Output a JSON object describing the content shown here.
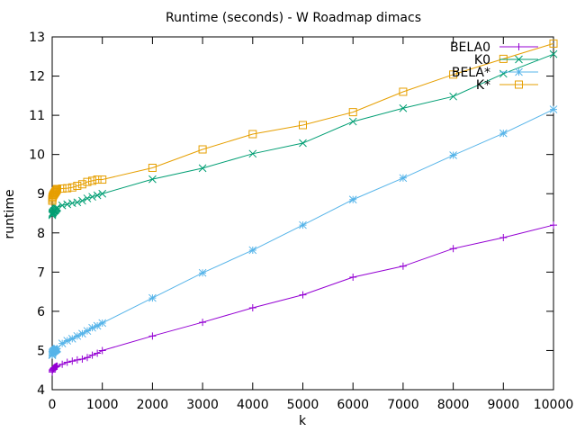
{
  "chart_data": {
    "type": "line",
    "title": "Runtime (seconds) - W Roadmap dimacs",
    "xlabel": "k",
    "ylabel": "runtime",
    "xlim": [
      0,
      10000
    ],
    "ylim": [
      4,
      13
    ],
    "xticks": [
      0,
      1000,
      2000,
      3000,
      4000,
      5000,
      6000,
      7000,
      8000,
      9000,
      10000
    ],
    "yticks": [
      4,
      5,
      6,
      7,
      8,
      9,
      10,
      11,
      12,
      13
    ],
    "grid": false,
    "legend_position": "top-right",
    "series": [
      {
        "name": "BELA0",
        "color": "#9400d3",
        "marker": "plus",
        "x": [
          1,
          2,
          5,
          10,
          20,
          30,
          40,
          50,
          60,
          70,
          80,
          90,
          100,
          200,
          300,
          400,
          500,
          600,
          700,
          800,
          900,
          1000,
          2000,
          3000,
          4000,
          5000,
          6000,
          7000,
          8000,
          9000,
          10000
        ],
        "y": [
          4.45,
          4.48,
          4.5,
          4.52,
          4.53,
          4.55,
          4.56,
          4.57,
          4.58,
          4.58,
          4.59,
          4.6,
          4.6,
          4.65,
          4.7,
          4.73,
          4.76,
          4.78,
          4.82,
          4.88,
          4.93,
          5.0,
          5.37,
          5.72,
          6.09,
          6.42,
          6.87,
          7.15,
          7.6,
          7.88,
          8.2
        ]
      },
      {
        "name": "K0",
        "color": "#009e73",
        "marker": "cross",
        "x": [
          1,
          2,
          5,
          10,
          20,
          30,
          40,
          50,
          60,
          70,
          80,
          90,
          100,
          200,
          300,
          400,
          500,
          600,
          700,
          800,
          900,
          1000,
          2000,
          3000,
          4000,
          5000,
          6000,
          7000,
          8000,
          9000,
          10000
        ],
        "y": [
          8.45,
          8.48,
          8.5,
          8.52,
          8.53,
          8.55,
          8.56,
          8.57,
          8.58,
          8.6,
          8.62,
          8.63,
          8.65,
          8.7,
          8.73,
          8.76,
          8.78,
          8.82,
          8.88,
          8.92,
          8.96,
          9.0,
          9.37,
          9.65,
          10.02,
          10.29,
          10.84,
          11.18,
          11.48,
          12.06,
          12.56
        ]
      },
      {
        "name": "BELA*",
        "color": "#56b4e9",
        "marker": "star",
        "x": [
          1,
          2,
          5,
          10,
          20,
          30,
          40,
          50,
          60,
          70,
          80,
          90,
          100,
          200,
          300,
          400,
          500,
          600,
          700,
          800,
          900,
          1000,
          2000,
          3000,
          4000,
          5000,
          6000,
          7000,
          8000,
          9000,
          10000
        ],
        "y": [
          4.88,
          4.9,
          4.93,
          4.95,
          4.97,
          4.98,
          4.99,
          5.0,
          5.01,
          5.02,
          5.03,
          5.04,
          5.05,
          5.18,
          5.25,
          5.3,
          5.37,
          5.43,
          5.5,
          5.58,
          5.63,
          5.7,
          6.34,
          6.98,
          7.56,
          8.2,
          8.85,
          9.4,
          9.98,
          10.54,
          11.15
        ]
      },
      {
        "name": "K*",
        "color": "#e69f00",
        "marker": "square",
        "x": [
          1,
          2,
          5,
          10,
          20,
          30,
          40,
          50,
          60,
          70,
          80,
          90,
          100,
          200,
          300,
          400,
          500,
          600,
          700,
          800,
          900,
          1000,
          2000,
          3000,
          4000,
          5000,
          6000,
          7000,
          8000,
          9000,
          10000
        ],
        "y": [
          8.82,
          8.86,
          8.9,
          8.93,
          8.96,
          8.98,
          9.0,
          9.02,
          9.04,
          9.06,
          9.08,
          9.1,
          9.12,
          9.13,
          9.14,
          9.16,
          9.2,
          9.24,
          9.3,
          9.33,
          9.36,
          9.36,
          9.66,
          10.13,
          10.52,
          10.75,
          11.08,
          11.6,
          12.04,
          12.44,
          12.83
        ]
      }
    ]
  }
}
